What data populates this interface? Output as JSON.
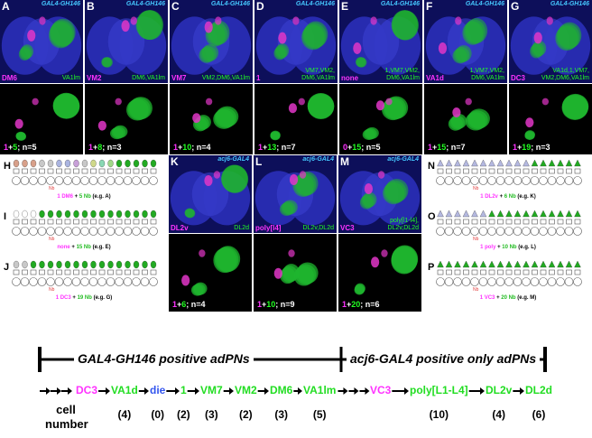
{
  "top_panels": [
    {
      "letter": "A",
      "driver": "GAL4-GH146",
      "magenta": "DM6",
      "green": [
        "VA1lm"
      ],
      "n1": "1",
      "n2": "5",
      "n": "n=5"
    },
    {
      "letter": "B",
      "driver": "GAL4-GH146",
      "magenta": "VM2",
      "green": [
        "DM6,VA1lm"
      ],
      "n1": "1",
      "n2": "8",
      "n": "n=3"
    },
    {
      "letter": "C",
      "driver": "GAL4-GH146",
      "magenta": "VM7",
      "green": [
        "VM2,DM6,VA1lm"
      ],
      "n1": "1",
      "n2": "10",
      "n": "n=4"
    },
    {
      "letter": "D",
      "driver": "GAL4-GH146",
      "magenta": "1",
      "green": [
        "VM7,VM2,",
        "DM6,VA1lm"
      ],
      "n1": "1",
      "n2": "13",
      "n": "n=7"
    },
    {
      "letter": "E",
      "driver": "GAL4-GH146",
      "magenta": "none",
      "green": [
        "1,VM7,VM2,",
        "DM6,VA1lm"
      ],
      "n1": "0",
      "n2": "15",
      "n": "n=5"
    },
    {
      "letter": "F",
      "driver": "GAL4-GH146",
      "magenta": "VA1d",
      "green": [
        "1,VM7,VM2,",
        "DM6,VA1lm"
      ],
      "n1": "1",
      "n2": "15",
      "n": "n=7"
    },
    {
      "letter": "G",
      "driver": "GAL4-GH146",
      "magenta": "DC3",
      "green": [
        "VA1d,1,VM7,",
        "VM2,DM6,VA1lm"
      ],
      "n1": "1",
      "n2": "19",
      "n": "n=3"
    }
  ],
  "mid_panels": [
    {
      "letter": "K",
      "driver": "acj6-GAL4",
      "magenta": "DL2v",
      "green": [
        "DL2d"
      ],
      "n1": "1",
      "n2": "6",
      "n": "n=4"
    },
    {
      "letter": "L",
      "driver": "acj6-GAL4",
      "magenta": "poly[l4]",
      "green": [
        "DL2v,DL2d"
      ],
      "n1": "1",
      "n2": "10",
      "n": "n=9"
    },
    {
      "letter": "M",
      "driver": "acj6-GAL4",
      "magenta": "VC3",
      "green": [
        "poly[l1-l4],",
        "DL2v,DL2d"
      ],
      "n1": "1",
      "n2": "20",
      "n": "n=6"
    }
  ],
  "left_schematics": [
    {
      "letter": "H",
      "cap_m": "1 DM6",
      "cap_g": "5 Nb",
      "cap_ex": "(e.g. A)"
    },
    {
      "letter": "I",
      "cap_m": "none",
      "cap_g": "15 Nb",
      "cap_ex": "(e.g. E)"
    },
    {
      "letter": "J",
      "cap_m": "1 DC3",
      "cap_g": "19 Nb",
      "cap_ex": "(e.g. G)"
    }
  ],
  "right_schematics": [
    {
      "letter": "N",
      "cap_m": "1 DL2v",
      "cap_g": "6 Nb",
      "cap_ex": "(e.g. K)"
    },
    {
      "letter": "O",
      "cap_m": "1 poly",
      "cap_g": "10 Nb",
      "cap_ex": "(e.g. L)"
    },
    {
      "letter": "P",
      "cap_m": "1 VC3",
      "cap_g": "20 Nb",
      "cap_ex": "(e.g. M)"
    }
  ],
  "plus": "+",
  "schematic_label": "Nb",
  "timeline": {
    "left_label": "GAL4-GH146 positive adPNs",
    "right_label": "acj6-GAL4 positive only adPNs",
    "sequence": [
      {
        "label": "DC3",
        "color": "#ff33ff",
        "count": ""
      },
      {
        "label": "VA1d",
        "color": "#22dd22",
        "count": "(4)"
      },
      {
        "label": "die",
        "color": "#3355ee",
        "count": "(0)"
      },
      {
        "label": "1",
        "color": "#22dd22",
        "count": "(2)"
      },
      {
        "label": "VM7",
        "color": "#22dd22",
        "count": "(3)"
      },
      {
        "label": "VM2",
        "color": "#22dd22",
        "count": "(2)"
      },
      {
        "label": "DM6",
        "color": "#22dd22",
        "count": "(3)"
      },
      {
        "label": "VA1lm",
        "color": "#22dd22",
        "count": "(5)"
      },
      {
        "label": "VC3",
        "color": "#ff33ff",
        "count": ""
      },
      {
        "label": "poly[L1-L4]",
        "color": "#22dd22",
        "count": "(10)"
      },
      {
        "label": "DL2v",
        "color": "#22dd22",
        "count": "(4)"
      },
      {
        "label": "DL2d",
        "color": "#22dd22",
        "count": "(6)"
      }
    ],
    "cell_number_label": [
      "cell",
      "number"
    ]
  }
}
